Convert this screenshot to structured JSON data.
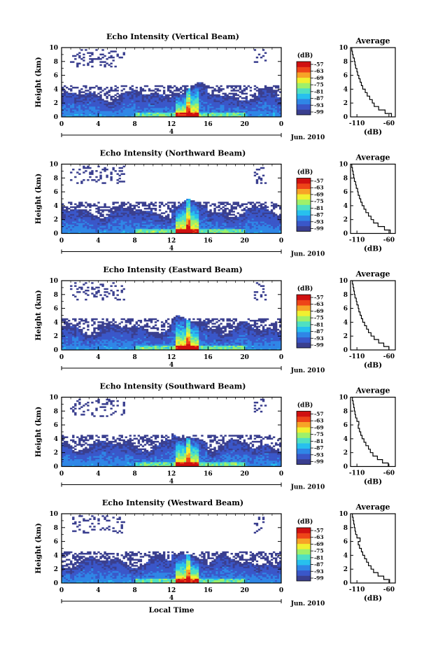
{
  "chart_data": [
    {
      "type": "heatmap",
      "title": "Echo Intensity (Vertical Beam)",
      "ylabel": "Height (km)",
      "xticks": [
        "0",
        "4",
        "8",
        "12",
        "16",
        "20",
        "0"
      ],
      "yticks": [
        "0",
        "2",
        "4",
        "6",
        "8",
        "10"
      ],
      "xlim": [
        0,
        24
      ],
      "ylim": [
        0,
        10
      ],
      "date_marker": "4",
      "date_label": "Jun. 2010",
      "colorbar": {
        "unit": "(dB)",
        "ticks": [
          "-57",
          "-63",
          "-69",
          "-75",
          "-81",
          "-87",
          "-93",
          "-99"
        ]
      },
      "profile": {
        "title": "Average",
        "xlabel": "(dB)",
        "xticks": [
          "-110",
          "-60"
        ],
        "xlim": [
          -120,
          -50
        ],
        "y": [
          0,
          0.5,
          1,
          1.5,
          2,
          2.5,
          3,
          3.5,
          4,
          4.5,
          5,
          5.5,
          6,
          6.5,
          7,
          7.5,
          8,
          8.5,
          9,
          9.5
        ],
        "x": [
          -56,
          -66,
          -76,
          -83,
          -86,
          -90,
          -94,
          -97,
          -101,
          -103,
          -105,
          -107,
          -109,
          -110,
          -112,
          -113,
          -114,
          -116,
          -117,
          -118
        ]
      }
    },
    {
      "type": "heatmap",
      "title": "Echo Intensity (Northward Beam)",
      "ylabel": "Height (km)",
      "xticks": [
        "0",
        "4",
        "8",
        "12",
        "16",
        "20",
        "0"
      ],
      "yticks": [
        "0",
        "2",
        "4",
        "6",
        "8",
        "10"
      ],
      "xlim": [
        0,
        24
      ],
      "ylim": [
        0,
        10
      ],
      "date_marker": "4",
      "date_label": "Jun. 2010",
      "colorbar": {
        "unit": "(dB)",
        "ticks": [
          "-57",
          "-63",
          "-69",
          "-75",
          "-81",
          "-87",
          "-93",
          "-99"
        ]
      },
      "profile": {
        "title": "Average",
        "xlabel": "(dB)",
        "xticks": [
          "-110",
          "-60"
        ],
        "xlim": [
          -120,
          -50
        ],
        "y": [
          0,
          0.5,
          1,
          1.5,
          2,
          2.5,
          3,
          3.5,
          4,
          4.5,
          5,
          5.5,
          6,
          6.5,
          7,
          7.5,
          8,
          8.5,
          9,
          9.5
        ],
        "x": [
          -58,
          -67,
          -77,
          -84,
          -88,
          -92,
          -96,
          -99,
          -102,
          -104,
          -106,
          -108,
          -109,
          -111,
          -112,
          -114,
          -115,
          -116,
          -117,
          -118
        ]
      }
    },
    {
      "type": "heatmap",
      "title": "Echo Intensity (Eastward Beam)",
      "ylabel": "Height (km)",
      "xticks": [
        "0",
        "4",
        "8",
        "12",
        "16",
        "20",
        "0"
      ],
      "yticks": [
        "0",
        "2",
        "4",
        "6",
        "8",
        "10"
      ],
      "xlim": [
        0,
        24
      ],
      "ylim": [
        0,
        10
      ],
      "date_marker": "4",
      "date_label": "Jun. 2010",
      "colorbar": {
        "unit": "(dB)",
        "ticks": [
          "-57",
          "-63",
          "-69",
          "-75",
          "-81",
          "-87",
          "-93",
          "-99"
        ]
      },
      "profile": {
        "title": "Average",
        "xlabel": "(dB)",
        "xticks": [
          "-110",
          "-60"
        ],
        "xlim": [
          -120,
          -50
        ],
        "y": [
          0,
          0.5,
          1,
          1.5,
          2,
          2.5,
          3,
          3.5,
          4,
          4.5,
          5,
          5.5,
          6,
          6.5,
          7,
          7.5,
          8,
          8.5,
          9,
          9.5
        ],
        "x": [
          -60,
          -68,
          -76,
          -83,
          -88,
          -92,
          -95,
          -98,
          -101,
          -103,
          -105,
          -107,
          -108,
          -110,
          -111,
          -113,
          -114,
          -115,
          -116,
          -117
        ]
      }
    },
    {
      "type": "heatmap",
      "title": "Echo Intensity (Southward Beam)",
      "ylabel": "Height (km)",
      "xticks": [
        "0",
        "4",
        "8",
        "12",
        "16",
        "20",
        "0"
      ],
      "yticks": [
        "0",
        "2",
        "4",
        "6",
        "8",
        "10"
      ],
      "xlim": [
        0,
        24
      ],
      "ylim": [
        0,
        10
      ],
      "date_marker": "4",
      "date_label": "Jun. 2010",
      "colorbar": {
        "unit": "(dB)",
        "ticks": [
          "-57",
          "-63",
          "-69",
          "-75",
          "-81",
          "-87",
          "-93",
          "-99"
        ]
      },
      "profile": {
        "title": "Average",
        "xlabel": "(dB)",
        "xticks": [
          "-110",
          "-60"
        ],
        "xlim": [
          -120,
          -50
        ],
        "y": [
          0,
          0.5,
          1,
          1.5,
          2,
          2.5,
          3,
          3.5,
          4,
          4.5,
          5,
          5.5,
          6,
          6.5,
          7,
          7.5,
          8,
          8.5,
          9,
          9.5
        ],
        "x": [
          -61,
          -70,
          -78,
          -85,
          -89,
          -92,
          -96,
          -99,
          -102,
          -104,
          -106,
          -108,
          -107,
          -110,
          -112,
          -113,
          -114,
          -115,
          -116,
          -117
        ]
      }
    },
    {
      "type": "heatmap",
      "title": "Echo Intensity (Westward Beam)",
      "ylabel": "Height (km)",
      "xlabel": "Local Time",
      "xticks": [
        "0",
        "4",
        "8",
        "12",
        "16",
        "20",
        "0"
      ],
      "yticks": [
        "0",
        "2",
        "4",
        "6",
        "8",
        "10"
      ],
      "xlim": [
        0,
        24
      ],
      "ylim": [
        0,
        10
      ],
      "date_marker": "4",
      "date_label": "Jun. 2010",
      "colorbar": {
        "unit": "(dB)",
        "ticks": [
          "-57",
          "-63",
          "-69",
          "-75",
          "-81",
          "-87",
          "-93",
          "-99"
        ]
      },
      "profile": {
        "title": "Average",
        "xlabel": "(dB)",
        "xticks": [
          "-110",
          "-60"
        ],
        "xlim": [
          -120,
          -50
        ],
        "y": [
          0,
          0.5,
          1,
          1.5,
          2,
          2.5,
          3,
          3.5,
          4,
          4.5,
          5,
          5.5,
          6,
          6.5,
          7,
          7.5,
          8,
          8.5,
          9,
          9.5
        ],
        "x": [
          -59,
          -68,
          -77,
          -84,
          -88,
          -92,
          -95,
          -98,
          -101,
          -103,
          -106,
          -108,
          -105,
          -110,
          -112,
          -113,
          -114,
          -115,
          -116,
          -117
        ]
      }
    }
  ],
  "colors": {
    "colormap": [
      "#3a3f8f",
      "#3a57c9",
      "#2f86e6",
      "#27c0ee",
      "#4fe0c2",
      "#9ef06a",
      "#f0f030",
      "#f7a327",
      "#ee4418",
      "#d01010"
    ]
  }
}
